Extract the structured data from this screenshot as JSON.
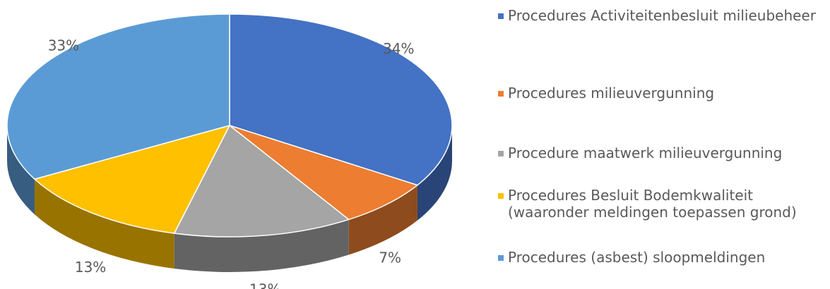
{
  "chart_data": {
    "type": "pie",
    "categories": [
      "Procedures Activiteitenbesluit milieubeheer",
      "Procedures milieuvergunning",
      "Procedure maatwerk milieuvergunning",
      "Procedures Besluit Bodemkwaliteit (waaronder meldingen toepassen grond)",
      "Procedures (asbest) sloopmeldingen"
    ],
    "values": [
      34,
      7,
      13,
      13,
      33
    ],
    "value_labels": [
      "34%",
      "7%",
      "13%",
      "13%",
      "33%"
    ],
    "colors": [
      "#4472c4",
      "#ed7d31",
      "#a5a5a5",
      "#ffc000",
      "#5b9bd5"
    ],
    "legend": "right"
  }
}
